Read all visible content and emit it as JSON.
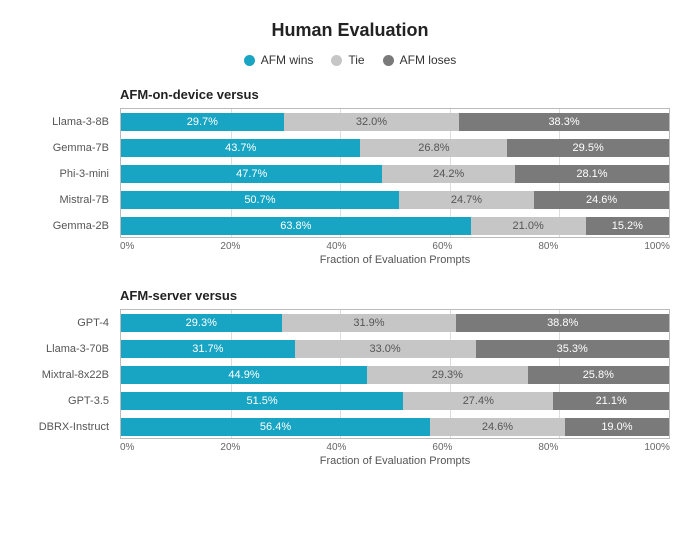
{
  "title": "Human Evaluation",
  "legend": [
    {
      "label": "AFM wins",
      "color": "#18a5c3"
    },
    {
      "label": "Tie",
      "color": "#c6c6c6"
    },
    {
      "label": "AFM loses",
      "color": "#7a7a7a"
    }
  ],
  "axis": {
    "title": "Fraction of Evaluation Prompts",
    "ticks": [
      0,
      20,
      40,
      60,
      80,
      100
    ],
    "tick_suffix": "%",
    "xlim": [
      0,
      100
    ]
  },
  "value_label_color_dark": "#555555",
  "panels": [
    {
      "label": "AFM-on-device versus",
      "rows": [
        {
          "label": "Llama-3-8B",
          "wins": 29.7,
          "tie": 32.0,
          "loses": 38.3
        },
        {
          "label": "Gemma-7B",
          "wins": 43.7,
          "tie": 26.8,
          "loses": 29.5
        },
        {
          "label": "Phi-3-mini",
          "wins": 47.7,
          "tie": 24.2,
          "loses": 28.1
        },
        {
          "label": "Mistral-7B",
          "wins": 50.7,
          "tie": 24.7,
          "loses": 24.6
        },
        {
          "label": "Gemma-2B",
          "wins": 63.8,
          "tie": 21.0,
          "loses": 15.2
        }
      ]
    },
    {
      "label": "AFM-server versus",
      "rows": [
        {
          "label": "GPT-4",
          "wins": 29.3,
          "tie": 31.9,
          "loses": 38.8
        },
        {
          "label": "Llama-3-70B",
          "wins": 31.7,
          "tie": 33.0,
          "loses": 35.3
        },
        {
          "label": "Mixtral-8x22B",
          "wins": 44.9,
          "tie": 29.3,
          "loses": 25.8
        },
        {
          "label": "GPT-3.5",
          "wins": 51.5,
          "tie": 27.4,
          "loses": 21.1
        },
        {
          "label": "DBRX-Instruct",
          "wins": 56.4,
          "tie": 24.6,
          "loses": 19.0
        }
      ]
    }
  ],
  "chart_type": "stacked_horizontal_bar",
  "background_color": "#ffffff",
  "grid_color": "#dddddd",
  "border_color": "#bbbbbb"
}
